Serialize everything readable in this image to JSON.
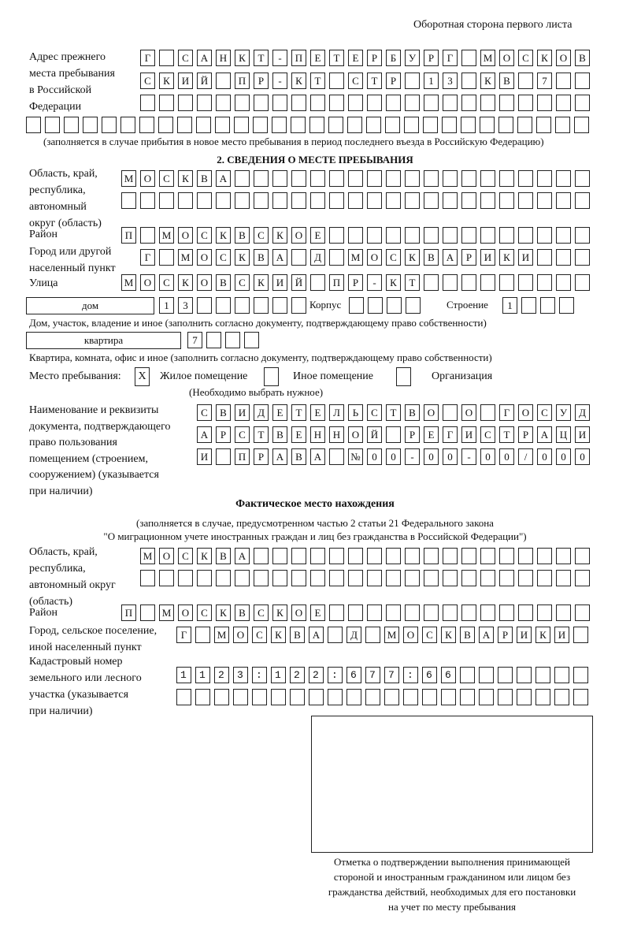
{
  "header": {
    "page_side": "Оборотная сторона первого листа"
  },
  "previous_address": {
    "label": "Адрес прежнего\nместа пребывания\nв Российской\nФедерации",
    "rows": [
      "Г САНКТ-ПЕТЕРБУРГ МОСКОВ",
      "СКИЙ ПР-КТ СТР 13 КВ 7",
      "",
      ""
    ],
    "note": "(заполняется в случае прибытия в новое место пребывания в период последнего въезда в Российскую Федерацию)"
  },
  "section2": {
    "title": "2. СВЕДЕНИЯ О МЕСТЕ ПРЕБЫВАНИЯ",
    "region_label": "Область, край,\nреспублика,\nавтономный\nокруг (область)",
    "region_rows": [
      "МОСКВА",
      ""
    ],
    "district_label": "Район",
    "district": "П МОСКВСКОЕ",
    "city_label": "Город или другой\nнаселенный пункт",
    "city": "Г МОСКВА Д МОСКВАРИКИ",
    "street_label": "Улица",
    "street": "МОСКОВСКИЙ ПР-КТ",
    "house_type": "дом",
    "house_number": "13",
    "building_label": "Корпус",
    "building": "",
    "structure_label": "Строение",
    "structure": "1",
    "house_note": "Дом, участок, владение и иное (заполнить согласно документу, подтверждающему право собственности)",
    "apartment_type": "квартира",
    "apartment_number": "7",
    "apartment_note": "Квартира, комната, офис и иное (заполнить согласно документу, подтверждающему право собственности)",
    "place_label": "Место пребывания:",
    "place_options": [
      {
        "label": "Жилое помещение",
        "mark": "X",
        "checked": true
      },
      {
        "label": "Иное помещение",
        "mark": "",
        "checked": false
      },
      {
        "label": "Организация",
        "mark": "",
        "checked": false
      }
    ],
    "place_note": "(Необходимо выбрать нужное)",
    "document_label": "Наименование и реквизиты\nдокумента, подтверждающего\nправо пользования\nпомещением (строением,\nсооружением) (указывается\nпри наличии)",
    "document_rows": [
      "СВИДЕТЕЛЬСТВО О ГОСУД",
      "АРСТВЕННОЙ РЕГИСТРАЦИ",
      "И ПРАВА №00-00-00/000"
    ]
  },
  "actual_location": {
    "title": "Фактическое место нахождения",
    "note_line1": "(заполняется в случае, предусмотренном частью 2 статьи 21 Федерального закона",
    "note_line2": "\"О миграционном учете иностранных граждан и лиц без гражданства в Российской Федерации\")",
    "region_label": "Область, край,\nреспублика,\nавтономный округ\n(область)",
    "region_rows": [
      "МОСКВА",
      ""
    ],
    "district_label": "Район",
    "district": "П МОСКВСКОЕ",
    "city_label": "Город, сельское поселение,\nиной населенный пункт",
    "city": "Г МОСКВА Д МОСКВАРИКИ",
    "cadastral_label": "Кадастровый номер\nземельного или лесного\nучастка (указывается\nпри наличии)",
    "cadastral_rows": [
      "1123:122:677:66",
      ""
    ]
  },
  "confirmation": {
    "caption": "Отметка о подтверждении выполнения принимающей\nстороной и иностранным гражданином или лицом без\nгражданства действий, необходимых для его постановки\nна учет по месту пребывания"
  }
}
